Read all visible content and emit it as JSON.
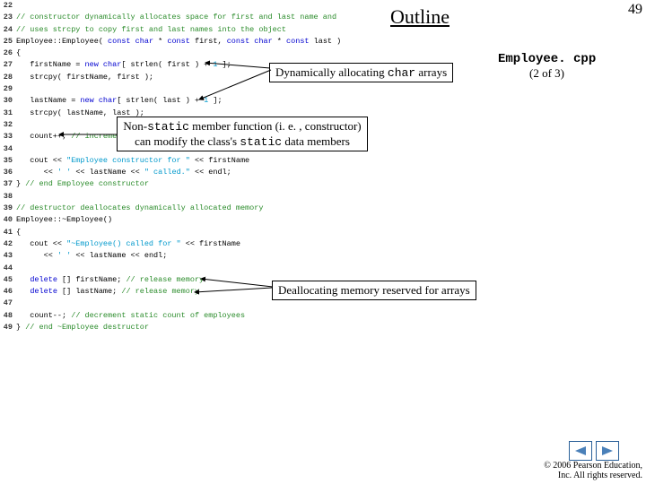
{
  "page_num": "49",
  "outline": "Outline",
  "filename": "Employee. cpp",
  "filename_sub": "(2 of 3)",
  "callouts": {
    "c1": {
      "prefix": "Dynamically allocating ",
      "mono": "char",
      "suffix": " arrays"
    },
    "c2": {
      "prefix": "Non-",
      "mono1": "static",
      "mid": " member function (i. e. , constructor)\ncan modify the class's ",
      "mono2": "static",
      "suffix": " data members"
    },
    "c3": "Deallocating memory reserved for arrays"
  },
  "copyright": "© 2006 Pearson Education,\nInc. All rights reserved.",
  "colors": {
    "comment": "#2a8b2a",
    "keyword": "#0000d0",
    "string": "#0099cc",
    "nav_border": "#2a6099",
    "nav_fill": "#4a80b9"
  },
  "lines": [
    {
      "n": "22",
      "spans": []
    },
    {
      "n": "23",
      "spans": [
        {
          "t": "// constructor dynamically allocates space for first and last name and",
          "c": "comment"
        }
      ]
    },
    {
      "n": "24",
      "spans": [
        {
          "t": "// uses strcpy to copy first and last names into the object",
          "c": "comment"
        }
      ]
    },
    {
      "n": "25",
      "spans": [
        {
          "t": "Employee::Employee( ",
          "c": "normal"
        },
        {
          "t": "const char",
          "c": "keyword"
        },
        {
          "t": " * ",
          "c": "normal"
        },
        {
          "t": "const",
          "c": "keyword"
        },
        {
          "t": " first, ",
          "c": "normal"
        },
        {
          "t": "const char",
          "c": "keyword"
        },
        {
          "t": " * ",
          "c": "normal"
        },
        {
          "t": "const",
          "c": "keyword"
        },
        {
          "t": " last )",
          "c": "normal"
        }
      ]
    },
    {
      "n": "26",
      "spans": [
        {
          "t": "{",
          "c": "normal"
        }
      ]
    },
    {
      "n": "27",
      "spans": [
        {
          "t": "   firstName = ",
          "c": "normal"
        },
        {
          "t": "new char",
          "c": "keyword"
        },
        {
          "t": "[ strlen( first ) + ",
          "c": "normal"
        },
        {
          "t": "1",
          "c": "string"
        },
        {
          "t": " ];",
          "c": "normal"
        }
      ]
    },
    {
      "n": "28",
      "spans": [
        {
          "t": "   strcpy( firstName, first );",
          "c": "normal"
        }
      ]
    },
    {
      "n": "29",
      "spans": []
    },
    {
      "n": "30",
      "spans": [
        {
          "t": "   lastName = ",
          "c": "normal"
        },
        {
          "t": "new char",
          "c": "keyword"
        },
        {
          "t": "[ strlen( last ) + ",
          "c": "normal"
        },
        {
          "t": "1",
          "c": "string"
        },
        {
          "t": " ];",
          "c": "normal"
        }
      ]
    },
    {
      "n": "31",
      "spans": [
        {
          "t": "   strcpy( lastName, last );",
          "c": "normal"
        }
      ]
    },
    {
      "n": "32",
      "spans": []
    },
    {
      "n": "33",
      "spans": [
        {
          "t": "   count++; ",
          "c": "normal"
        },
        {
          "t": "// increment static count of employees",
          "c": "comment"
        }
      ]
    },
    {
      "n": "34",
      "spans": []
    },
    {
      "n": "35",
      "spans": [
        {
          "t": "   cout << ",
          "c": "normal"
        },
        {
          "t": "\"Employee constructor for \"",
          "c": "string"
        },
        {
          "t": " << firstName",
          "c": "normal"
        }
      ]
    },
    {
      "n": "36",
      "spans": [
        {
          "t": "      << ",
          "c": "normal"
        },
        {
          "t": "' '",
          "c": "string"
        },
        {
          "t": " << lastName << ",
          "c": "normal"
        },
        {
          "t": "\" called.\"",
          "c": "string"
        },
        {
          "t": " << endl;",
          "c": "normal"
        }
      ]
    },
    {
      "n": "37",
      "spans": [
        {
          "t": "} ",
          "c": "normal"
        },
        {
          "t": "// end Employee constructor",
          "c": "comment"
        }
      ]
    },
    {
      "n": "38",
      "spans": []
    },
    {
      "n": "39",
      "spans": [
        {
          "t": "// destructor deallocates dynamically allocated memory",
          "c": "comment"
        }
      ]
    },
    {
      "n": "40",
      "spans": [
        {
          "t": "Employee::~Employee()",
          "c": "normal"
        }
      ]
    },
    {
      "n": "41",
      "spans": [
        {
          "t": "{",
          "c": "normal"
        }
      ]
    },
    {
      "n": "42",
      "spans": [
        {
          "t": "   cout << ",
          "c": "normal"
        },
        {
          "t": "\"~Employee() called for \"",
          "c": "string"
        },
        {
          "t": " << firstName",
          "c": "normal"
        }
      ]
    },
    {
      "n": "43",
      "spans": [
        {
          "t": "      << ",
          "c": "normal"
        },
        {
          "t": "' '",
          "c": "string"
        },
        {
          "t": " << lastName << endl;",
          "c": "normal"
        }
      ]
    },
    {
      "n": "44",
      "spans": []
    },
    {
      "n": "45",
      "spans": [
        {
          "t": "   ",
          "c": "normal"
        },
        {
          "t": "delete",
          "c": "keyword"
        },
        {
          "t": " [] firstName; ",
          "c": "normal"
        },
        {
          "t": "// release memory",
          "c": "comment"
        }
      ]
    },
    {
      "n": "46",
      "spans": [
        {
          "t": "   ",
          "c": "normal"
        },
        {
          "t": "delete",
          "c": "keyword"
        },
        {
          "t": " [] lastName; ",
          "c": "normal"
        },
        {
          "t": "// release memory",
          "c": "comment"
        }
      ]
    },
    {
      "n": "47",
      "spans": []
    },
    {
      "n": "48",
      "spans": [
        {
          "t": "   count--; ",
          "c": "normal"
        },
        {
          "t": "// decrement static count of employees",
          "c": "comment"
        }
      ]
    },
    {
      "n": "49",
      "spans": [
        {
          "t": "} ",
          "c": "normal"
        },
        {
          "t": "// end ~Employee destructor",
          "c": "comment"
        }
      ]
    }
  ]
}
